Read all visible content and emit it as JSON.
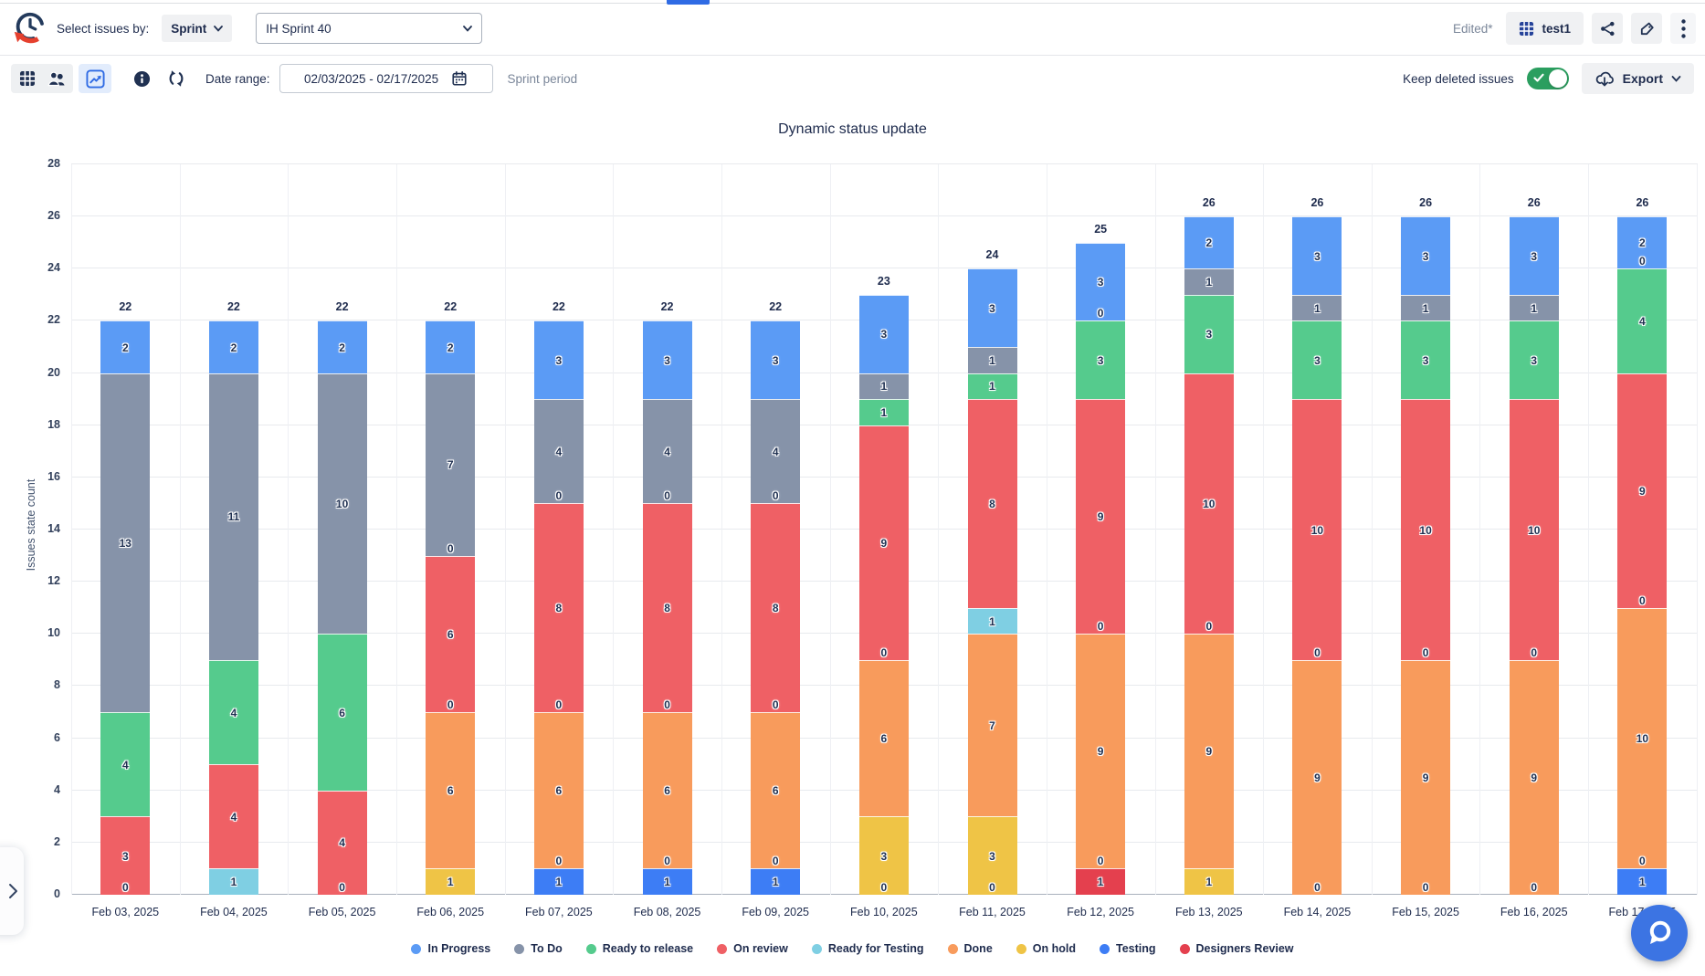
{
  "window": {
    "top_accent_color": "#2F6BE4"
  },
  "header": {
    "select_issues_by": "Select issues by:",
    "mode_select": {
      "value": "Sprint"
    },
    "sprint_select": {
      "value": "IH Sprint 40"
    },
    "edited": "Edited*",
    "report_name": "test1"
  },
  "toolbar": {
    "date_range_label": "Date range:",
    "date_range_value": "02/03/2025 - 02/17/2025",
    "period_hint": "Sprint period",
    "keep_deleted_label": "Keep deleted issues",
    "keep_deleted_enabled": true,
    "export_label": "Export"
  },
  "icons": {
    "logo": "clock-history-logo",
    "view_table": "table-grid-icon",
    "view_people": "people-icon",
    "view_chart": "line-chart-icon",
    "info": "info-circle-icon",
    "refresh": "refresh-icon",
    "calendar": "calendar-icon",
    "share": "share-nodes-icon",
    "label": "tag-icon",
    "more": "kebab-menu-icon",
    "export": "cloud-download-icon",
    "fab": "magnifier-bubble-icon",
    "drawer": "chevron-right-icon"
  },
  "chart_data": {
    "type": "bar",
    "stacked": true,
    "title": "Dynamic status update",
    "xlabel": "",
    "ylabel": "Issues state count",
    "ylim": [
      0,
      28
    ],
    "ytick_step": 2,
    "grid": true,
    "legend_position": "bottom",
    "categories": [
      "Feb 03, 2025",
      "Feb 04, 2025",
      "Feb 05, 2025",
      "Feb 06, 2025",
      "Feb 07, 2025",
      "Feb 08, 2025",
      "Feb 09, 2025",
      "Feb 10, 2025",
      "Feb 11, 2025",
      "Feb 12, 2025",
      "Feb 13, 2025",
      "Feb 14, 2025",
      "Feb 15, 2025",
      "Feb 16, 2025",
      "Feb 17, 2025"
    ],
    "series": [
      {
        "name": "Designers Review",
        "color": "#E4404E",
        "values": [
          0,
          0,
          0,
          0,
          0,
          0,
          0,
          0,
          0,
          1,
          0,
          0,
          0,
          0,
          0
        ]
      },
      {
        "name": "Testing",
        "color": "#3D7DF5",
        "values": [
          0,
          0,
          0,
          0,
          1,
          1,
          1,
          0,
          0,
          0,
          0,
          0,
          0,
          0,
          1
        ]
      },
      {
        "name": "On hold",
        "color": "#EFC446",
        "values": [
          0,
          0,
          0,
          1,
          0,
          0,
          0,
          3,
          3,
          0,
          1,
          0,
          0,
          0,
          0
        ]
      },
      {
        "name": "Done",
        "color": "#F89B5C",
        "values": [
          0,
          0,
          0,
          6,
          6,
          6,
          6,
          6,
          7,
          9,
          9,
          9,
          9,
          9,
          10
        ]
      },
      {
        "name": "Ready for Testing",
        "color": "#7FCFE3",
        "values": [
          0,
          1,
          0,
          0,
          0,
          0,
          0,
          0,
          1,
          0,
          0,
          0,
          0,
          0,
          0
        ]
      },
      {
        "name": "On review",
        "color": "#EF6065",
        "values": [
          3,
          4,
          4,
          6,
          8,
          8,
          8,
          9,
          8,
          9,
          10,
          10,
          10,
          10,
          9
        ]
      },
      {
        "name": "Ready to release",
        "color": "#55CB8D",
        "values": [
          4,
          4,
          6,
          0,
          0,
          0,
          0,
          1,
          1,
          3,
          3,
          3,
          3,
          3,
          4
        ]
      },
      {
        "name": "To Do",
        "color": "#8693A9",
        "values": [
          13,
          11,
          10,
          7,
          4,
          4,
          4,
          1,
          1,
          0,
          1,
          1,
          1,
          1,
          0
        ]
      },
      {
        "name": "In Progress",
        "color": "#5B9BF5",
        "values": [
          2,
          2,
          2,
          2,
          3,
          3,
          3,
          3,
          3,
          3,
          2,
          3,
          3,
          3,
          2
        ]
      }
    ],
    "totals": [
      22,
      22,
      22,
      22,
      22,
      22,
      22,
      23,
      24,
      25,
      26,
      26,
      26,
      26,
      26
    ],
    "visible_zero_labels": [
      [
        0
      ],
      [],
      [
        0
      ],
      [
        7,
        13
      ],
      [
        1,
        7,
        15
      ],
      [
        1,
        7,
        15
      ],
      [
        1,
        7,
        15
      ],
      [
        0,
        9
      ],
      [
        0
      ],
      [
        1,
        10,
        22
      ],
      [
        10
      ],
      [
        0,
        9
      ],
      [
        0,
        9
      ],
      [
        0,
        9
      ],
      [
        1,
        11,
        24
      ]
    ],
    "legend": [
      "In Progress",
      "To Do",
      "Ready to release",
      "On review",
      "Ready for Testing",
      "Done",
      "On hold",
      "Testing",
      "Designers Review"
    ]
  }
}
